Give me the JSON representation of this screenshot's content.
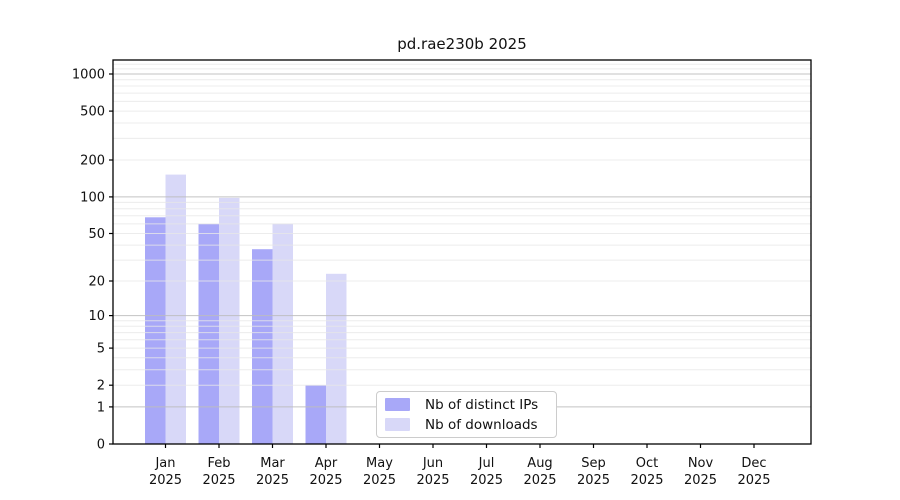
{
  "chart_data": {
    "type": "bar",
    "title": "pd.rae230b 2025",
    "x_categories": [
      "Jan",
      "Feb",
      "Mar",
      "Apr",
      "May",
      "Jun",
      "Jul",
      "Aug",
      "Sep",
      "Oct",
      "Nov",
      "Dec"
    ],
    "x_year_label": "2025",
    "y_ticks": [
      0,
      1,
      2,
      5,
      10,
      20,
      50,
      100,
      200,
      500,
      1000
    ],
    "y_scale": "log1p",
    "ylim": [
      0,
      1300
    ],
    "grid": true,
    "grid_minor_per_decade": [
      2,
      3,
      4,
      5,
      6,
      7,
      8,
      9
    ],
    "legend_position": "bottom-center",
    "series": [
      {
        "name": "Nb of distinct IPs",
        "color": "#a8a8f8",
        "values": [
          68,
          60,
          37,
          2,
          0,
          0,
          0,
          0,
          0,
          0,
          0,
          0
        ]
      },
      {
        "name": "Nb of downloads",
        "color": "#d8d8f8",
        "values": [
          152,
          98,
          60,
          23,
          0,
          0,
          0,
          0,
          0,
          0,
          0,
          0
        ]
      }
    ],
    "colors": {
      "axis": "#000000",
      "tick_text": "#111111",
      "grid_major": "#bcbcbc",
      "grid_minor": "#e7e7e7",
      "background": "#ffffff",
      "legend_border": "#cccccc"
    }
  }
}
